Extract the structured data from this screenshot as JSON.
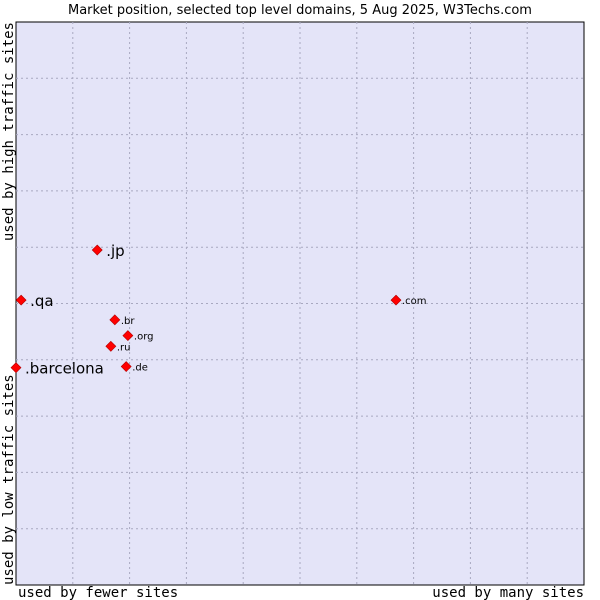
{
  "chart_data": {
    "type": "scatter",
    "title": "Market position, selected top level domains, 5 Aug 2025, W3Techs.com",
    "xlabel_left": "used by fewer sites",
    "xlabel_right": "used by many sites",
    "ylabel_top": "used by high traffic sites",
    "ylabel_bottom": "used by low traffic sites",
    "xlim": [
      0,
      100
    ],
    "ylim": [
      0,
      100
    ],
    "grid": true,
    "colors": {
      "plot_background": "#e4e4f8",
      "grid": "#a8a8c0",
      "marker": "#ff0000"
    },
    "points": [
      {
        "label": ".jp",
        "x": 14.3,
        "y": 59.5,
        "size": "large"
      },
      {
        "label": ".qa",
        "x": 0.9,
        "y": 50.6,
        "size": "large"
      },
      {
        "label": ".barcelona",
        "x": 0.0,
        "y": 38.6,
        "size": "large"
      },
      {
        "label": ".com",
        "x": 66.9,
        "y": 50.6,
        "size": "small"
      },
      {
        "label": ".br",
        "x": 17.4,
        "y": 47.1,
        "size": "small"
      },
      {
        "label": ".org",
        "x": 19.7,
        "y": 44.3,
        "size": "small"
      },
      {
        "label": ".ru",
        "x": 16.7,
        "y": 42.4,
        "size": "small"
      },
      {
        "label": ".de",
        "x": 19.4,
        "y": 38.8,
        "size": "small"
      }
    ]
  }
}
